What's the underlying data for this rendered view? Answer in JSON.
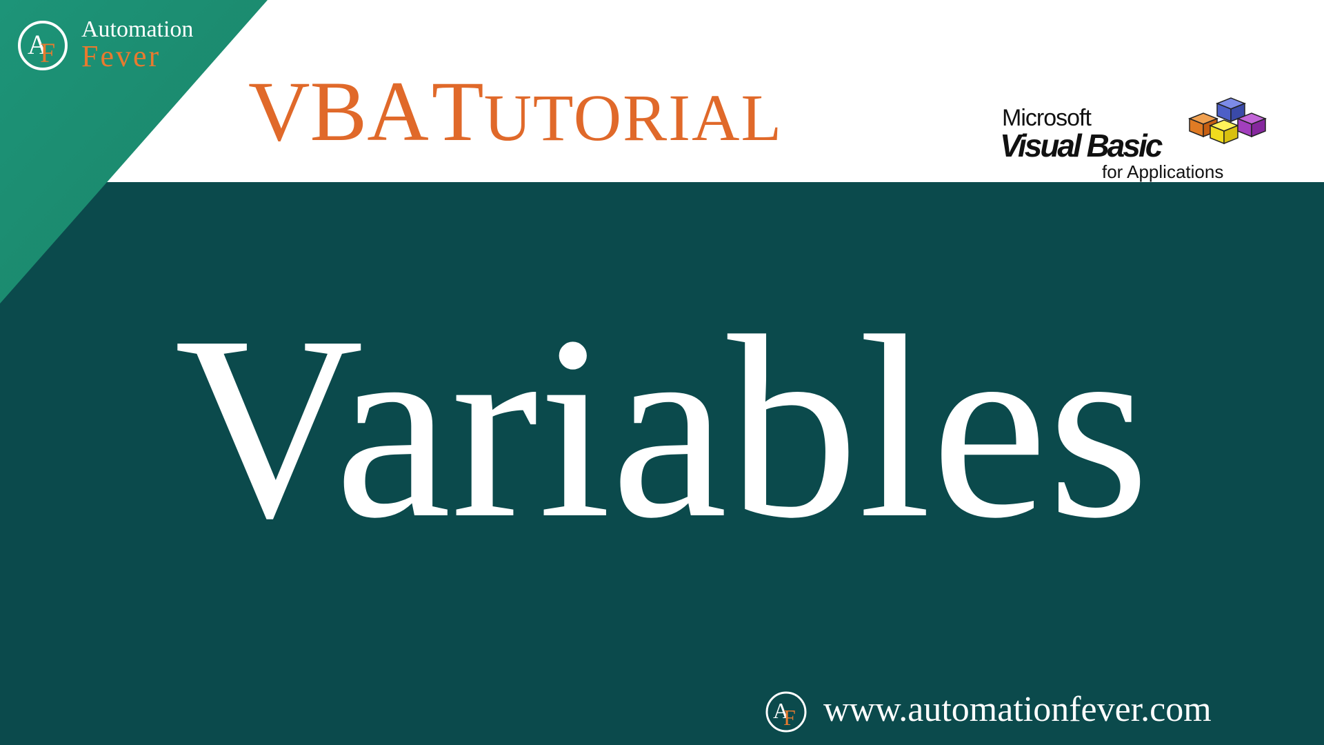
{
  "brand": {
    "line1": "Automation",
    "line2": "Fever",
    "monogram": "AF"
  },
  "heading": {
    "first_word": "VBA",
    "second_word": "Tutorial"
  },
  "vba_logo": {
    "line1": "Microsoft",
    "line2": "Visual Basic",
    "line3": "for Applications"
  },
  "main_title": "Variables",
  "footer": {
    "url": "www.automationfever.com"
  },
  "colors": {
    "background": "#0b4a4c",
    "band": "#ffffff",
    "accent_orange": "#e0692a",
    "triangle_green": "#1a8a6e"
  }
}
